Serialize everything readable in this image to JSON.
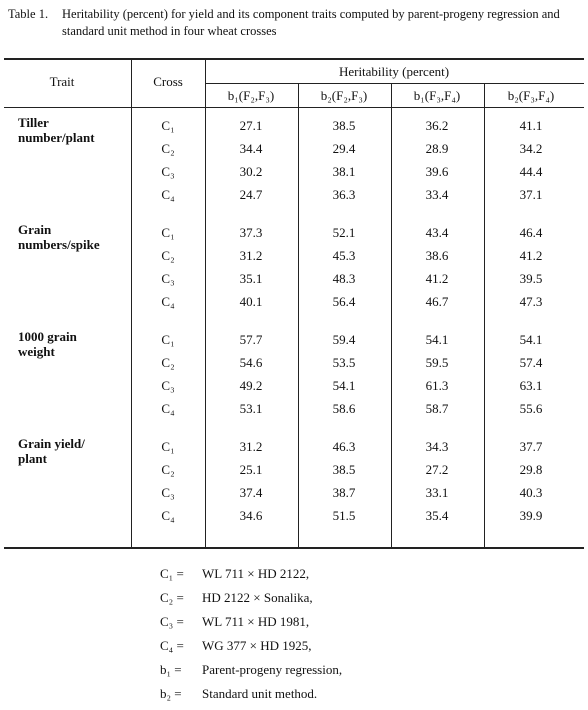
{
  "title": {
    "label": "Table 1.",
    "caption": "Heritability (percent) for yield and its component traits computed by parent-progeny regression and standard unit method in four wheat crosses"
  },
  "table": {
    "header": {
      "trait": "Trait",
      "cross": "Cross",
      "group": "Heritability (percent)",
      "columns": [
        "b₁(F₂,F₃)",
        "b₂(F₂,F₃)",
        "b₁(F₃,F₄)",
        "b₂(F₃,F₄)"
      ]
    },
    "groups": [
      {
        "trait": [
          "Tiller",
          "number/plant"
        ],
        "rows": [
          {
            "cross": "C₁",
            "values": [
              27.1,
              38.5,
              36.2,
              41.1
            ]
          },
          {
            "cross": "C₂",
            "values": [
              34.4,
              29.4,
              28.9,
              34.2
            ]
          },
          {
            "cross": "C₃",
            "values": [
              30.2,
              38.1,
              39.6,
              44.4
            ]
          },
          {
            "cross": "C₄",
            "values": [
              24.7,
              36.3,
              33.4,
              37.1
            ]
          }
        ]
      },
      {
        "trait": [
          "Grain",
          "numbers/spike"
        ],
        "rows": [
          {
            "cross": "C₁",
            "values": [
              37.3,
              52.1,
              43.4,
              46.4
            ]
          },
          {
            "cross": "C₂",
            "values": [
              31.2,
              45.3,
              38.6,
              41.2
            ]
          },
          {
            "cross": "C₃",
            "values": [
              35.1,
              48.3,
              41.2,
              39.5
            ]
          },
          {
            "cross": "C₄",
            "values": [
              40.1,
              56.4,
              46.7,
              47.3
            ]
          }
        ]
      },
      {
        "trait": [
          "1000 grain",
          "weight"
        ],
        "rows": [
          {
            "cross": "C₁",
            "values": [
              57.7,
              59.4,
              54.1,
              54.1
            ]
          },
          {
            "cross": "C₂",
            "values": [
              54.6,
              53.5,
              59.5,
              57.4
            ]
          },
          {
            "cross": "C₃",
            "values": [
              49.2,
              54.1,
              61.3,
              63.1
            ]
          },
          {
            "cross": "C₄",
            "values": [
              53.1,
              58.6,
              58.7,
              55.6
            ]
          }
        ]
      },
      {
        "trait": [
          "Grain yield/",
          "plant"
        ],
        "rows": [
          {
            "cross": "C₁",
            "values": [
              31.2,
              46.3,
              34.3,
              37.7
            ]
          },
          {
            "cross": "C₂",
            "values": [
              25.1,
              38.5,
              27.2,
              29.8
            ]
          },
          {
            "cross": "C₃",
            "values": [
              37.4,
              38.7,
              33.1,
              40.3
            ]
          },
          {
            "cross": "C₄",
            "values": [
              34.6,
              51.5,
              35.4,
              39.9
            ]
          }
        ]
      }
    ]
  },
  "footnotes": [
    {
      "symbol": "C₁ =",
      "text": "WL 711 × HD 2122,"
    },
    {
      "symbol": "C₂ =",
      "text": "HD 2122 × Sonalika,"
    },
    {
      "symbol": "C₃ =",
      "text": "WL 711 × HD 1981,"
    },
    {
      "symbol": "C₄ =",
      "text": "WG 377 × HD 1925,"
    },
    {
      "symbol": "b₁ =",
      "text": "Parent-progeny regression,"
    },
    {
      "symbol": "b₂ =",
      "text": "Standard unit method."
    }
  ]
}
